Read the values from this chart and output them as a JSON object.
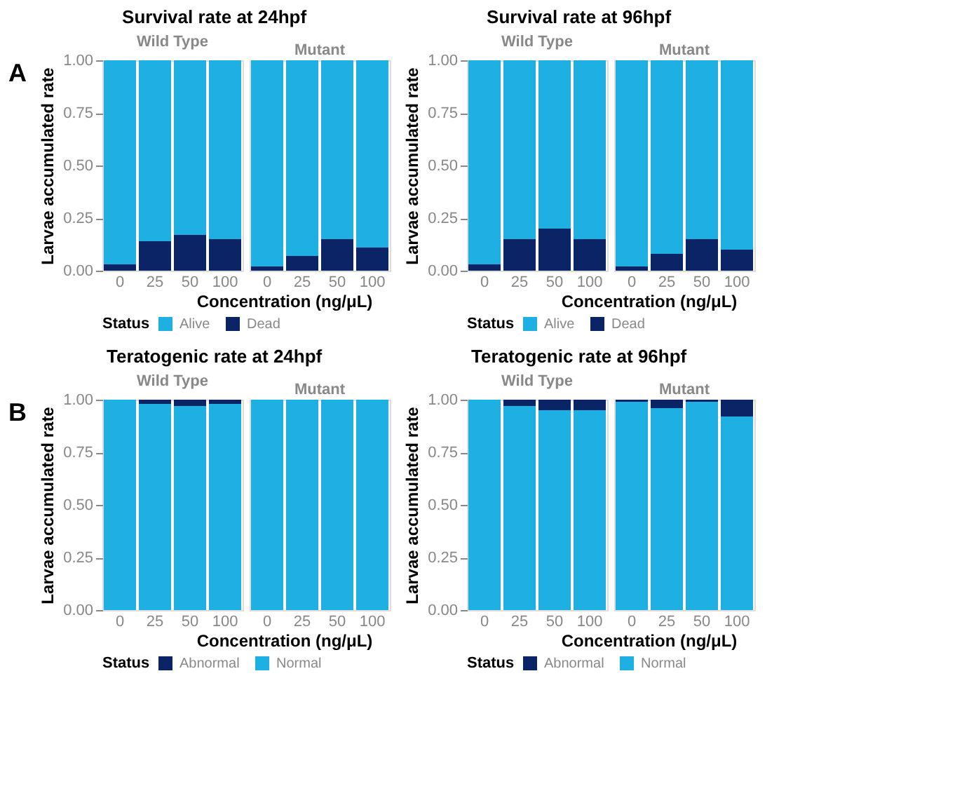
{
  "chart_data": [
    {
      "type": "bar",
      "stacked": true,
      "title": "Survival rate at 24hpf",
      "subtitle": "Wild Type",
      "ylabel": "Larvae accumulated rate",
      "xlabel": "Concentration (ng/μL)",
      "legend_title": "Status",
      "legend": "bottom",
      "annotations": [
        "A"
      ],
      "categories": [
        "0",
        "25",
        "50",
        "100"
      ],
      "ylim": [
        0,
        1
      ],
      "yticks": [
        {
          "value": 0,
          "label": "0.00"
        },
        {
          "value": 0.25,
          "label": "0.25"
        },
        {
          "value": 0.5,
          "label": "0.50"
        },
        {
          "value": 0.75,
          "label": "0.75"
        },
        {
          "value": 1,
          "label": "1.00"
        }
      ],
      "series": [
        {
          "name": "Dead",
          "color": "#0b2466",
          "values": [
            0.03,
            0.14,
            0.17,
            0.15
          ]
        },
        {
          "name": "Alive",
          "color": "#1eb0e2",
          "values": [
            0.97,
            0.86,
            0.83,
            0.85
          ]
        }
      ]
    },
    {
      "type": "bar",
      "stacked": true,
      "subtitle": "Mutant",
      "legend": "bottom",
      "tick_labels": "x",
      "categories": [
        "0",
        "25",
        "50",
        "100"
      ],
      "ylim": [
        0,
        1
      ],
      "series": [
        {
          "name": "Dead",
          "color": "#0b2466",
          "values": [
            0.02,
            0.07,
            0.15,
            0.11
          ]
        },
        {
          "name": "Alive",
          "color": "#1eb0e2",
          "values": [
            0.98,
            0.93,
            0.85,
            0.89
          ]
        }
      ]
    },
    {
      "type": "bar",
      "stacked": true,
      "title": "Survival rate at 96hpf",
      "subtitle": "Wild Type",
      "ylabel": "Larvae accumulated rate",
      "xlabel": "Concentration (ng/μL)",
      "legend_title": "Status",
      "legend": "bottom",
      "categories": [
        "0",
        "25",
        "50",
        "100"
      ],
      "ylim": [
        0,
        1
      ],
      "yticks": [
        {
          "value": 0,
          "label": "0.00"
        },
        {
          "value": 0.25,
          "label": "0.25"
        },
        {
          "value": 0.5,
          "label": "0.50"
        },
        {
          "value": 0.75,
          "label": "0.75"
        },
        {
          "value": 1,
          "label": "1.00"
        }
      ],
      "series": [
        {
          "name": "Dead",
          "color": "#0b2466",
          "values": [
            0.03,
            0.15,
            0.2,
            0.15
          ]
        },
        {
          "name": "Alive",
          "color": "#1eb0e2",
          "values": [
            0.97,
            0.85,
            0.8,
            0.85
          ]
        }
      ]
    },
    {
      "type": "bar",
      "stacked": true,
      "subtitle": "Mutant",
      "legend": "bottom",
      "tick_labels": "x",
      "categories": [
        "0",
        "25",
        "50",
        "100"
      ],
      "ylim": [
        0,
        1
      ],
      "series": [
        {
          "name": "Dead",
          "color": "#0b2466",
          "values": [
            0.02,
            0.08,
            0.15,
            0.1
          ]
        },
        {
          "name": "Alive",
          "color": "#1eb0e2",
          "values": [
            0.98,
            0.92,
            0.85,
            0.9
          ]
        }
      ]
    },
    {
      "type": "bar",
      "stacked": true,
      "title": "Teratogenic rate at 24hpf",
      "subtitle": "Wild Type",
      "ylabel": "Larvae accumulated rate",
      "xlabel": "Concentration (ng/μL)",
      "legend_title": "Status",
      "legend": "bottom",
      "annotations": [
        "B"
      ],
      "categories": [
        "0",
        "25",
        "50",
        "100"
      ],
      "ylim": [
        0,
        1
      ],
      "yticks": [
        {
          "value": 0,
          "label": "0.00"
        },
        {
          "value": 0.25,
          "label": "0.25"
        },
        {
          "value": 0.5,
          "label": "0.50"
        },
        {
          "value": 0.75,
          "label": "0.75"
        },
        {
          "value": 1,
          "label": "1.00"
        }
      ],
      "series": [
        {
          "name": "Normal",
          "color": "#1eb0e2",
          "values": [
            1.0,
            0.98,
            0.97,
            0.98
          ]
        },
        {
          "name": "Abnormal",
          "color": "#0b2466",
          "values": [
            0,
            0.02,
            0.03,
            0.02
          ]
        }
      ]
    },
    {
      "type": "bar",
      "stacked": true,
      "subtitle": "Mutant",
      "legend": "bottom",
      "tick_labels": "x",
      "categories": [
        "0",
        "25",
        "50",
        "100"
      ],
      "ylim": [
        0,
        1
      ],
      "series": [
        {
          "name": "Normal",
          "color": "#1eb0e2",
          "values": [
            1.0,
            1.0,
            1.0,
            1.0
          ]
        },
        {
          "name": "Abnormal",
          "color": "#0b2466",
          "values": [
            0,
            0,
            0,
            0
          ]
        }
      ]
    },
    {
      "type": "bar",
      "stacked": true,
      "title": "Teratogenic rate at 96hpf",
      "subtitle": "Wild Type",
      "ylabel": "Larvae accumulated rate",
      "xlabel": "Concentration (ng/μL)",
      "legend_title": "Status",
      "legend": "bottom",
      "categories": [
        "0",
        "25",
        "50",
        "100"
      ],
      "ylim": [
        0,
        1
      ],
      "yticks": [
        {
          "value": 0,
          "label": "0.00"
        },
        {
          "value": 0.25,
          "label": "0.25"
        },
        {
          "value": 0.5,
          "label": "0.50"
        },
        {
          "value": 0.75,
          "label": "0.75"
        },
        {
          "value": 1,
          "label": "1.00"
        }
      ],
      "series": [
        {
          "name": "Normal",
          "color": "#1eb0e2",
          "values": [
            1.0,
            0.97,
            0.95,
            0.95
          ]
        },
        {
          "name": "Abnormal",
          "color": "#0b2466",
          "values": [
            0,
            0.03,
            0.05,
            0.05
          ]
        }
      ]
    },
    {
      "type": "bar",
      "stacked": true,
      "subtitle": "Mutant",
      "legend": "bottom",
      "tick_labels": "x",
      "categories": [
        "0",
        "25",
        "50",
        "100"
      ],
      "ylim": [
        0,
        1
      ],
      "series": [
        {
          "name": "Normal",
          "color": "#1eb0e2",
          "values": [
            0.99,
            0.96,
            0.99,
            0.92
          ]
        },
        {
          "name": "Abnormal",
          "color": "#0b2466",
          "values": [
            0.01,
            0.04,
            0.01,
            0.08
          ]
        }
      ]
    }
  ]
}
